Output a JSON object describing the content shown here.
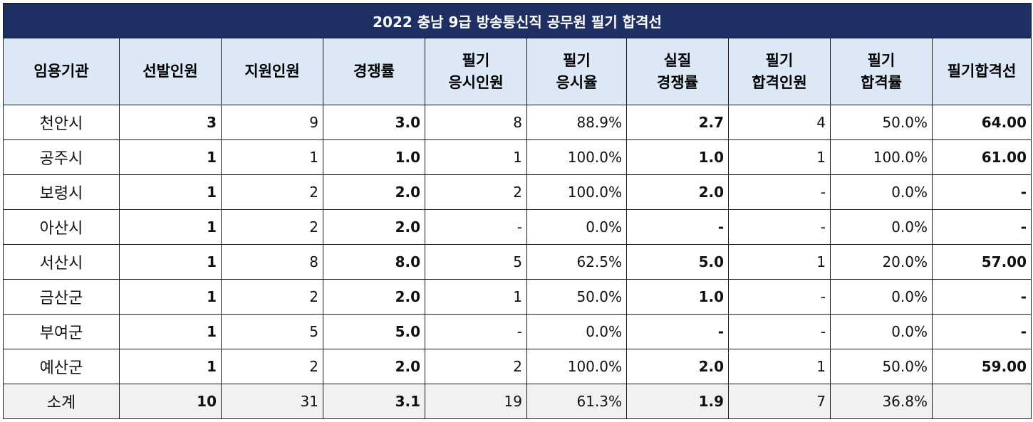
{
  "title": "2022 충남 9급 방송통신직 공무원 필기 합격선",
  "headers": [
    [
      "임용기관"
    ],
    [
      "선발인원"
    ],
    [
      "지원인원"
    ],
    [
      "경쟁률"
    ],
    [
      "필기",
      "응시인원"
    ],
    [
      "필기",
      "응시율"
    ],
    [
      "실질",
      "경쟁률"
    ],
    [
      "필기",
      "합격인원"
    ],
    [
      "필기",
      "합격률"
    ],
    [
      "필기합격선"
    ]
  ],
  "rows": [
    [
      "천안시",
      "3",
      "9",
      "3.0",
      "8",
      "88.9%",
      "2.7",
      "4",
      "50.0%",
      "64.00"
    ],
    [
      "공주시",
      "1",
      "1",
      "1.0",
      "1",
      "100.0%",
      "1.0",
      "1",
      "100.0%",
      "61.00"
    ],
    [
      "보령시",
      "1",
      "2",
      "2.0",
      "2",
      "100.0%",
      "2.0",
      "-",
      "0.0%",
      "-"
    ],
    [
      "아산시",
      "1",
      "2",
      "2.0",
      "-",
      "0.0%",
      "-",
      "-",
      "0.0%",
      "-"
    ],
    [
      "서산시",
      "1",
      "8",
      "8.0",
      "5",
      "62.5%",
      "5.0",
      "1",
      "20.0%",
      "57.00"
    ],
    [
      "금산군",
      "1",
      "2",
      "2.0",
      "1",
      "50.0%",
      "1.0",
      "-",
      "0.0%",
      "-"
    ],
    [
      "부여군",
      "1",
      "5",
      "5.0",
      "-",
      "0.0%",
      "-",
      "-",
      "0.0%",
      "-"
    ],
    [
      "예산군",
      "1",
      "2",
      "2.0",
      "2",
      "100.0%",
      "2.0",
      "1",
      "50.0%",
      "59.00"
    ]
  ],
  "total": [
    "소계",
    "10",
    "31",
    "3.1",
    "19",
    "61.3%",
    "1.9",
    "7",
    "36.8%",
    ""
  ],
  "colors": {
    "title_bg": "#1d2f63",
    "header_bg": "#dce8f5",
    "cutoff_text": "#1f74b9",
    "total_bg": "#f1f1f1"
  }
}
